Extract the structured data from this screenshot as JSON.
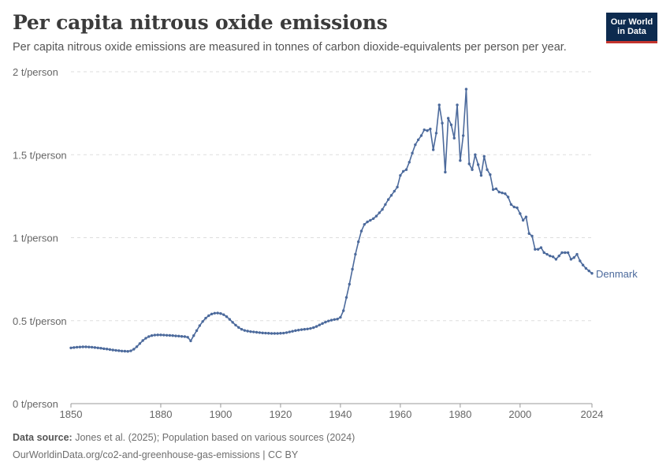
{
  "header": {
    "title": "Per capita nitrous oxide emissions",
    "subtitle": "Per capita nitrous oxide emissions are measured in tonnes of carbon dioxide-equivalents per person per year."
  },
  "logo": {
    "line1": "Our World",
    "line2": "in Data"
  },
  "footer": {
    "source_label": "Data source:",
    "source_text": "Jones et al. (2025); Population based on various sources (2024)",
    "url_text": "OurWorldinData.org/co2-and-greenhouse-gas-emissions | CC BY"
  },
  "colors": {
    "series": "#4c6a9c",
    "grid": "#dddddd",
    "text": "#666666"
  },
  "chart_data": {
    "type": "line",
    "xlim": [
      1850,
      2024
    ],
    "ylim": [
      0,
      2
    ],
    "x_ticks": [
      1850,
      1880,
      1900,
      1920,
      1940,
      1960,
      1980,
      2000,
      2024
    ],
    "y_ticks": [
      {
        "value": 0,
        "label": "0 t/person"
      },
      {
        "value": 0.5,
        "label": "0.5 t/person"
      },
      {
        "value": 1,
        "label": "1 t/person"
      },
      {
        "value": 1.5,
        "label": "1.5 t/person"
      },
      {
        "value": 2,
        "label": "2 t/person"
      }
    ],
    "grid": true,
    "series": [
      {
        "name": "Denmark",
        "x": [
          1850,
          1851,
          1852,
          1853,
          1854,
          1855,
          1856,
          1857,
          1858,
          1859,
          1860,
          1861,
          1862,
          1863,
          1864,
          1865,
          1866,
          1867,
          1868,
          1869,
          1870,
          1871,
          1872,
          1873,
          1874,
          1875,
          1876,
          1877,
          1878,
          1879,
          1880,
          1881,
          1882,
          1883,
          1884,
          1885,
          1886,
          1887,
          1888,
          1889,
          1890,
          1891,
          1892,
          1893,
          1894,
          1895,
          1896,
          1897,
          1898,
          1899,
          1900,
          1901,
          1902,
          1903,
          1904,
          1905,
          1906,
          1907,
          1908,
          1909,
          1910,
          1911,
          1912,
          1913,
          1914,
          1915,
          1916,
          1917,
          1918,
          1919,
          1920,
          1921,
          1922,
          1923,
          1924,
          1925,
          1926,
          1927,
          1928,
          1929,
          1930,
          1931,
          1932,
          1933,
          1934,
          1935,
          1936,
          1937,
          1938,
          1939,
          1940,
          1941,
          1942,
          1943,
          1944,
          1945,
          1946,
          1947,
          1948,
          1949,
          1950,
          1951,
          1952,
          1953,
          1954,
          1955,
          1956,
          1957,
          1958,
          1959,
          1960,
          1961,
          1962,
          1963,
          1964,
          1965,
          1966,
          1967,
          1968,
          1969,
          1970,
          1971,
          1972,
          1973,
          1974,
          1975,
          1976,
          1977,
          1978,
          1979,
          1980,
          1981,
          1982,
          1983,
          1984,
          1985,
          1986,
          1987,
          1988,
          1989,
          1990,
          1991,
          1992,
          1993,
          1994,
          1995,
          1996,
          1997,
          1998,
          1999,
          2000,
          2001,
          2002,
          2003,
          2004,
          2005,
          2006,
          2007,
          2008,
          2009,
          2010,
          2011,
          2012,
          2013,
          2014,
          2015,
          2016,
          2017,
          2018,
          2019,
          2020,
          2021,
          2022,
          2023,
          2024
        ],
        "y": [
          0.336,
          0.338,
          0.34,
          0.341,
          0.342,
          0.342,
          0.341,
          0.34,
          0.338,
          0.336,
          0.334,
          0.331,
          0.329,
          0.326,
          0.323,
          0.321,
          0.319,
          0.317,
          0.316,
          0.315,
          0.318,
          0.328,
          0.343,
          0.362,
          0.38,
          0.394,
          0.404,
          0.41,
          0.413,
          0.414,
          0.414,
          0.413,
          0.412,
          0.411,
          0.41,
          0.408,
          0.407,
          0.405,
          0.404,
          0.4,
          0.378,
          0.41,
          0.44,
          0.47,
          0.495,
          0.515,
          0.53,
          0.54,
          0.545,
          0.546,
          0.543,
          0.536,
          0.524,
          0.508,
          0.49,
          0.473,
          0.459,
          0.448,
          0.441,
          0.437,
          0.434,
          0.432,
          0.43,
          0.428,
          0.426,
          0.425,
          0.424,
          0.423,
          0.423,
          0.423,
          0.424,
          0.425,
          0.428,
          0.432,
          0.436,
          0.44,
          0.443,
          0.446,
          0.448,
          0.45,
          0.453,
          0.458,
          0.465,
          0.474,
          0.483,
          0.491,
          0.498,
          0.503,
          0.507,
          0.51,
          0.52,
          0.56,
          0.64,
          0.72,
          0.81,
          0.9,
          0.975,
          1.04,
          1.08,
          1.095,
          1.105,
          1.115,
          1.13,
          1.15,
          1.17,
          1.2,
          1.23,
          1.255,
          1.28,
          1.305,
          1.375,
          1.4,
          1.41,
          1.455,
          1.51,
          1.56,
          1.59,
          1.615,
          1.65,
          1.645,
          1.655,
          1.53,
          1.63,
          1.8,
          1.69,
          1.395,
          1.72,
          1.68,
          1.6,
          1.8,
          1.465,
          1.615,
          1.895,
          1.445,
          1.41,
          1.5,
          1.44,
          1.375,
          1.49,
          1.41,
          1.38,
          1.29,
          1.295,
          1.275,
          1.27,
          1.265,
          1.245,
          1.2,
          1.185,
          1.18,
          1.145,
          1.105,
          1.125,
          1.025,
          1.01,
          0.93,
          0.93,
          0.94,
          0.91,
          0.9,
          0.89,
          0.885,
          0.87,
          0.89,
          0.91,
          0.91,
          0.91,
          0.87,
          0.88,
          0.9,
          0.86,
          0.835,
          0.815,
          0.8,
          0.785
        ]
      }
    ]
  }
}
